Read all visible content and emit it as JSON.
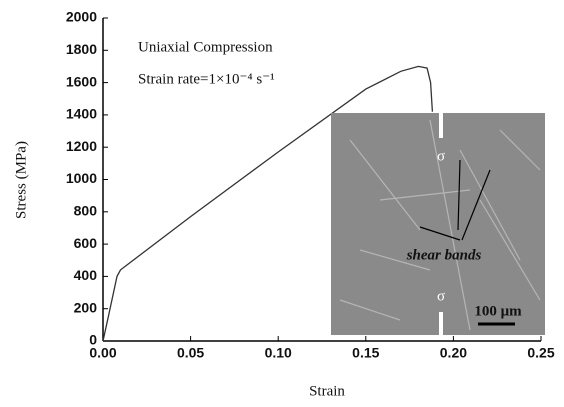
{
  "chart_data": {
    "type": "line",
    "xlabel": "Strain",
    "ylabel": "Stress (MPa)",
    "annotations": [
      "Uniaxial Compression",
      "Strain rate=1×10⁻⁴ s⁻¹"
    ],
    "inset_labels": [
      "σ",
      "σ",
      "shear bands",
      "100 μm"
    ],
    "series": [
      {
        "color": "#333333",
        "x": [
          0,
          0.003,
          0.008,
          0.01,
          0.05,
          0.1,
          0.15,
          0.17,
          0.18,
          0.185,
          0.187,
          0.188
        ],
        "values": [
          0,
          150,
          400,
          440,
          770,
          1170,
          1560,
          1670,
          1700,
          1690,
          1600,
          1420
        ]
      }
    ],
    "xlim": [
      0,
      0.25
    ],
    "ylim": [
      0,
      2000
    ],
    "xticks": [
      {
        "value": 0,
        "label": "0.00"
      },
      {
        "value": 0.05,
        "label": "0.05"
      },
      {
        "value": 0.1,
        "label": "0.10"
      },
      {
        "value": 0.15,
        "label": "0.15"
      },
      {
        "value": 0.2,
        "label": "0.20"
      },
      {
        "value": 0.25,
        "label": "0.25"
      }
    ],
    "yticks": [
      0,
      200,
      400,
      600,
      800,
      1000,
      1200,
      1400,
      1600,
      1800,
      2000
    ],
    "grid": false
  }
}
